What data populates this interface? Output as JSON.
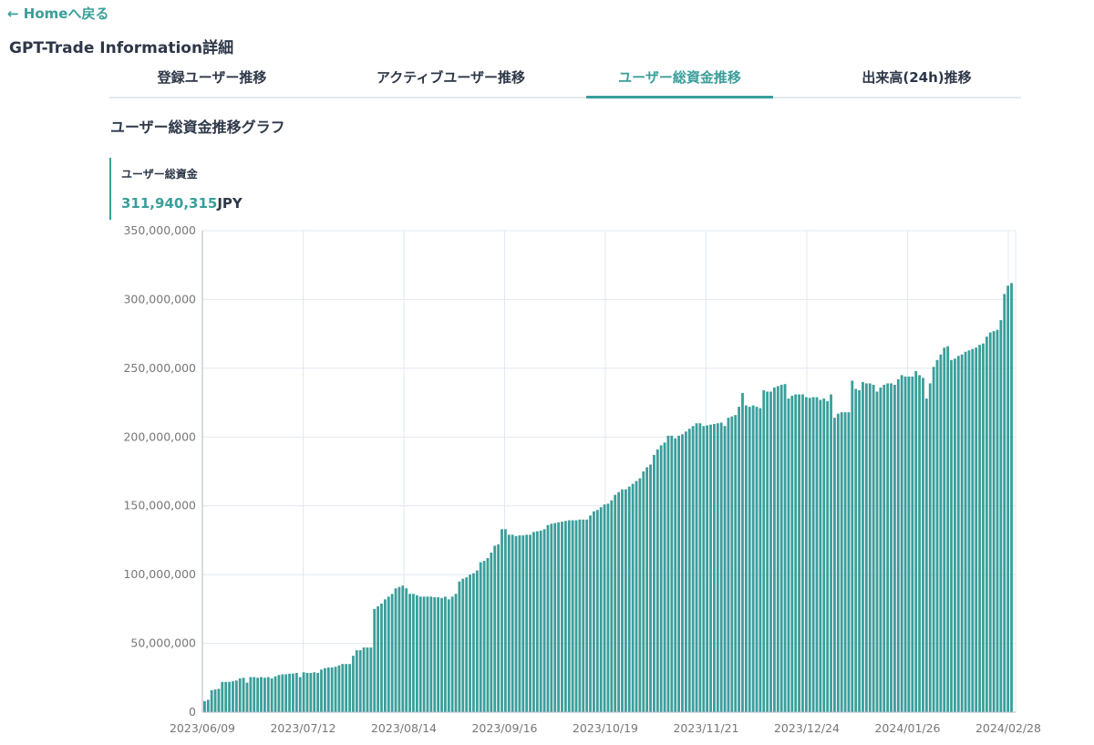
{
  "nav": {
    "back_label": "← Homeへ戻る"
  },
  "page": {
    "title": "GPT-Trade Information詳細"
  },
  "tabs": [
    {
      "label": "登録ユーザー推移",
      "active": false
    },
    {
      "label": "アクティブユーザー推移",
      "active": false
    },
    {
      "label": "ユーザー総資金推移",
      "active": true
    },
    {
      "label": "出来高(24h)推移",
      "active": false
    }
  ],
  "section": {
    "title": "ユーザー総資金推移グラフ"
  },
  "stat": {
    "label": "ユーザー総資金",
    "value": "311,940,315",
    "unit": "JPY"
  },
  "colors": {
    "accent": "#3a9e9a",
    "bar": "#3a9e9a",
    "grid": "#e2e8f0"
  },
  "chart_data": {
    "type": "bar",
    "title": "",
    "xlabel": "",
    "ylabel": "",
    "ylim": [
      0,
      350000000
    ],
    "yticks": [
      "350,000,000",
      "300,000,000",
      "250,000,000",
      "200,000,000",
      "150,000,000",
      "100,000,000",
      "50,000,000",
      "0"
    ],
    "xticks": [
      "2023/06/09",
      "2023/07/12",
      "2023/08/14",
      "2023/09/16",
      "2023/10/19",
      "2023/11/21",
      "2023/12/24",
      "2024/01/26",
      "2024/02/28"
    ],
    "grid": true,
    "series": [
      {
        "values": [
          8000000,
          9000000,
          16000000,
          16500000,
          17000000,
          22000000,
          22000000,
          22000000,
          22500000,
          23000000,
          24500000,
          25000000,
          21500000,
          25500000,
          25500000,
          25000000,
          25500000,
          25000000,
          25500000,
          24500000,
          26000000,
          27000000,
          27500000,
          27500000,
          28000000,
          28000000,
          28500000,
          25500000,
          29000000,
          28500000,
          28500000,
          29000000,
          28500000,
          31000000,
          32000000,
          32500000,
          32500000,
          33000000,
          34000000,
          35000000,
          35000000,
          35000000,
          41000000,
          45000000,
          45000000,
          47000000,
          47000000,
          47000000,
          75000000,
          77000000,
          79000000,
          82000000,
          84000000,
          86000000,
          90000000,
          91000000,
          92000000,
          90000000,
          86000000,
          86000000,
          85000000,
          84000000,
          84000000,
          84000000,
          84000000,
          83500000,
          83500000,
          83000000,
          84000000,
          82000000,
          84000000,
          86000000,
          95000000,
          97000000,
          98000000,
          100000000,
          101000000,
          103000000,
          109000000,
          110000000,
          112000000,
          116000000,
          121000000,
          122000000,
          133000000,
          133000000,
          129000000,
          129000000,
          128000000,
          128500000,
          128500000,
          129000000,
          129000000,
          131000000,
          131500000,
          132000000,
          133000000,
          136000000,
          137000000,
          137500000,
          138000000,
          138500000,
          139000000,
          139500000,
          139500000,
          139500000,
          140000000,
          140000000,
          140000000,
          143000000,
          146000000,
          147000000,
          149000000,
          151000000,
          151500000,
          154000000,
          158000000,
          160000000,
          162000000,
          162000000,
          164000000,
          166000000,
          168000000,
          170000000,
          175000000,
          178000000,
          180000000,
          187000000,
          191000000,
          194000000,
          196000000,
          201000000,
          201000000,
          199000000,
          201000000,
          202000000,
          204000000,
          206000000,
          208000000,
          210000000,
          210000000,
          208000000,
          208500000,
          209000000,
          209500000,
          210000000,
          210500000,
          208000000,
          214000000,
          215000000,
          216000000,
          222000000,
          232000000,
          223000000,
          222000000,
          223000000,
          222000000,
          221000000,
          234000000,
          233000000,
          233000000,
          236000000,
          237000000,
          238000000,
          238500000,
          228000000,
          230000000,
          231000000,
          231000000,
          231000000,
          229000000,
          228500000,
          229000000,
          229000000,
          227000000,
          228000000,
          226000000,
          231000000,
          214000000,
          217000000,
          218000000,
          218000000,
          218000000,
          241000000,
          235000000,
          234000000,
          240000000,
          239000000,
          239000000,
          238000000,
          233000000,
          236000000,
          238000000,
          239000000,
          239000000,
          238000000,
          242000000,
          245000000,
          244000000,
          244000000,
          244000000,
          248000000,
          245000000,
          243000000,
          228000000,
          239000000,
          251000000,
          256000000,
          260000000,
          265000000,
          266000000,
          256000000,
          257000000,
          259000000,
          260000000,
          262000000,
          263000000,
          264000000,
          265000000,
          267000000,
          268000000,
          273000000,
          276000000,
          277000000,
          278000000,
          285000000,
          304000000,
          310000000,
          311940315
        ]
      }
    ]
  }
}
